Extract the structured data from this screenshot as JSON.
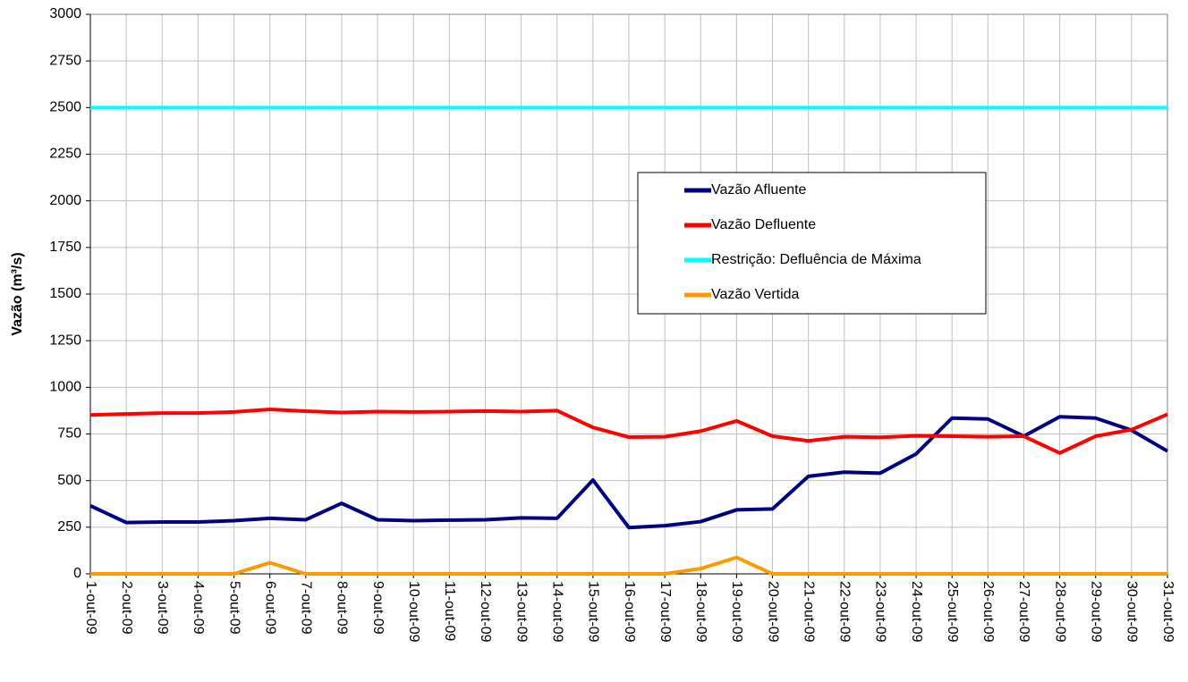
{
  "chart_data": {
    "type": "line",
    "y_label": "Vazão (m³/s)",
    "categories": [
      "1-out-09",
      "2-out-09",
      "3-out-09",
      "4-out-09",
      "5-out-09",
      "6-out-09",
      "7-out-09",
      "8-out-09",
      "9-out-09",
      "10-out-09",
      "11-out-09",
      "12-out-09",
      "13-out-09",
      "14-out-09",
      "15-out-09",
      "16-out-09",
      "17-out-09",
      "18-out-09",
      "19-out-09",
      "20-out-09",
      "21-out-09",
      "22-out-09",
      "23-out-09",
      "24-out-09",
      "25-out-09",
      "26-out-09",
      "27-out-09",
      "28-out-09",
      "29-out-09",
      "30-out-09",
      "31-out-09"
    ],
    "series": [
      {
        "name": "Vazão Afluente",
        "color": "#000080",
        "values": [
          365,
          275,
          278,
          278,
          285,
          298,
          290,
          378,
          290,
          285,
          288,
          290,
          300,
          298,
          503,
          248,
          258,
          280,
          343,
          348,
          523,
          545,
          540,
          643,
          835,
          830,
          738,
          842,
          835,
          770,
          658
        ]
      },
      {
        "name": "Vazão Defluente",
        "color": "#ff0000",
        "values": [
          852,
          857,
          862,
          862,
          868,
          882,
          872,
          865,
          870,
          868,
          870,
          873,
          870,
          875,
          785,
          733,
          735,
          765,
          820,
          738,
          713,
          735,
          732,
          740,
          738,
          735,
          738,
          648,
          738,
          773,
          855
        ]
      },
      {
        "name": "Restrição: Defluência de Máxima",
        "color": "#00ffff",
        "values": [
          2500,
          2500,
          2500,
          2500,
          2500,
          2500,
          2500,
          2500,
          2500,
          2500,
          2500,
          2500,
          2500,
          2500,
          2500,
          2500,
          2500,
          2500,
          2500,
          2500,
          2500,
          2500,
          2500,
          2500,
          2500,
          2500,
          2500,
          2500,
          2500,
          2500,
          2500
        ]
      },
      {
        "name": "Vazão Vertida",
        "color": "#ff9900",
        "values": [
          0,
          0,
          0,
          0,
          0,
          60,
          0,
          0,
          0,
          0,
          0,
          0,
          0,
          0,
          0,
          0,
          0,
          28,
          88,
          0,
          0,
          0,
          0,
          0,
          0,
          0,
          0,
          0,
          0,
          0,
          0
        ]
      }
    ],
    "ylim": [
      0,
      3000
    ],
    "yticks": [
      0,
      250,
      500,
      750,
      1000,
      1250,
      1500,
      1750,
      2000,
      2250,
      2500,
      2750,
      3000
    ],
    "grid": true
  }
}
